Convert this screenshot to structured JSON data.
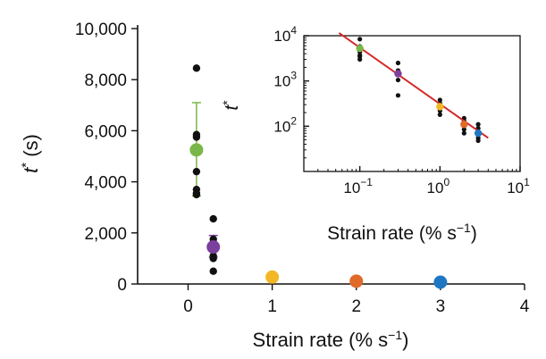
{
  "chart_data": [
    {
      "type": "scatter",
      "title": "",
      "xlabel": "Strain rate (% s",
      "xlabel_sup": "−1",
      "xlabel_tail": ")",
      "ylabel_base": "t",
      "ylabel_sup": "*",
      "ylabel_tail": " (s)",
      "xlim": [
        -0.6,
        4
      ],
      "ylim": [
        0,
        10000
      ],
      "x_ticks": [
        0,
        1,
        2,
        3,
        4
      ],
      "x_tick_labels": [
        "0",
        "1",
        "2",
        "3",
        "4"
      ],
      "y_ticks": [
        0,
        2000,
        4000,
        6000,
        8000,
        10000
      ],
      "y_tick_labels": [
        "0",
        "2,000",
        "4,000",
        "6,000",
        "8,000",
        "10,000"
      ],
      "raw_points": {
        "color": "#111111",
        "x": [
          0.1,
          0.1,
          0.1,
          0.1,
          0.1,
          0.1,
          0.1,
          0.3,
          0.3,
          0.3,
          0.3,
          0.3,
          0.3,
          0.3,
          1,
          2,
          3
        ],
        "y": [
          8450,
          5850,
          5750,
          4400,
          3700,
          3550,
          3500,
          2550,
          1750,
          1600,
          1450,
          1100,
          1000,
          500,
          380,
          150,
          80
        ]
      },
      "series": [
        {
          "x": 0.1,
          "mean": 5250,
          "err_low": 3450,
          "err_high": 7100,
          "color": "#7ab648"
        },
        {
          "x": 0.3,
          "mean": 1450,
          "err_low": 1050,
          "err_high": 1900,
          "color": "#7b3f9e"
        },
        {
          "x": 1,
          "mean": 270,
          "err_low": 230,
          "err_high": 310,
          "color": "#f2b824"
        },
        {
          "x": 2,
          "mean": 110,
          "err_low": 90,
          "err_high": 130,
          "color": "#e06a2a"
        },
        {
          "x": 3,
          "mean": 70,
          "err_low": 55,
          "err_high": 85,
          "color": "#1f77c4"
        }
      ]
    },
    {
      "type": "scatter",
      "scale": "log-log",
      "title": "",
      "xlabel": "Strain rate (% s",
      "xlabel_sup": "−1",
      "xlabel_tail": ")",
      "ylabel_base": "t",
      "ylabel_sup": "*",
      "xlim": [
        0.02,
        10
      ],
      "ylim": [
        10,
        10000
      ],
      "x_ticks": [
        0.1,
        1,
        10
      ],
      "x_tick_labels": [
        {
          "base": "10",
          "exp": "−1"
        },
        {
          "base": "10",
          "exp": "0"
        },
        {
          "base": "10",
          "exp": "1"
        }
      ],
      "y_ticks": [
        100,
        1000,
        10000
      ],
      "y_tick_labels": [
        {
          "base": "10",
          "exp": "2"
        },
        {
          "base": "10",
          "exp": "3"
        },
        {
          "base": "10",
          "exp": "4"
        }
      ],
      "fit_line": {
        "color": "#d62728",
        "x": [
          0.055,
          4.0
        ],
        "y": [
          11500,
          55
        ]
      },
      "raw_points": {
        "color": "#111111",
        "x": [
          0.1,
          0.1,
          0.1,
          0.1,
          0.1,
          0.1,
          0.3,
          0.3,
          0.3,
          0.3,
          0.3,
          1,
          1,
          1,
          1,
          1,
          2,
          2,
          2,
          2,
          2,
          3,
          3,
          3,
          3,
          3
        ],
        "y": [
          8400,
          5800,
          4400,
          3700,
          3500,
          3000,
          2500,
          1700,
          1400,
          1050,
          480,
          380,
          320,
          270,
          220,
          180,
          150,
          130,
          110,
          85,
          70,
          110,
          90,
          70,
          55,
          48
        ]
      },
      "series": [
        {
          "x": 0.1,
          "mean": 5250,
          "color": "#7ab648"
        },
        {
          "x": 0.3,
          "mean": 1450,
          "color": "#7b3f9e"
        },
        {
          "x": 1,
          "mean": 270,
          "color": "#f2b824"
        },
        {
          "x": 2,
          "mean": 110,
          "color": "#e06a2a"
        },
        {
          "x": 3,
          "mean": 70,
          "color": "#1f77c4"
        }
      ]
    }
  ]
}
